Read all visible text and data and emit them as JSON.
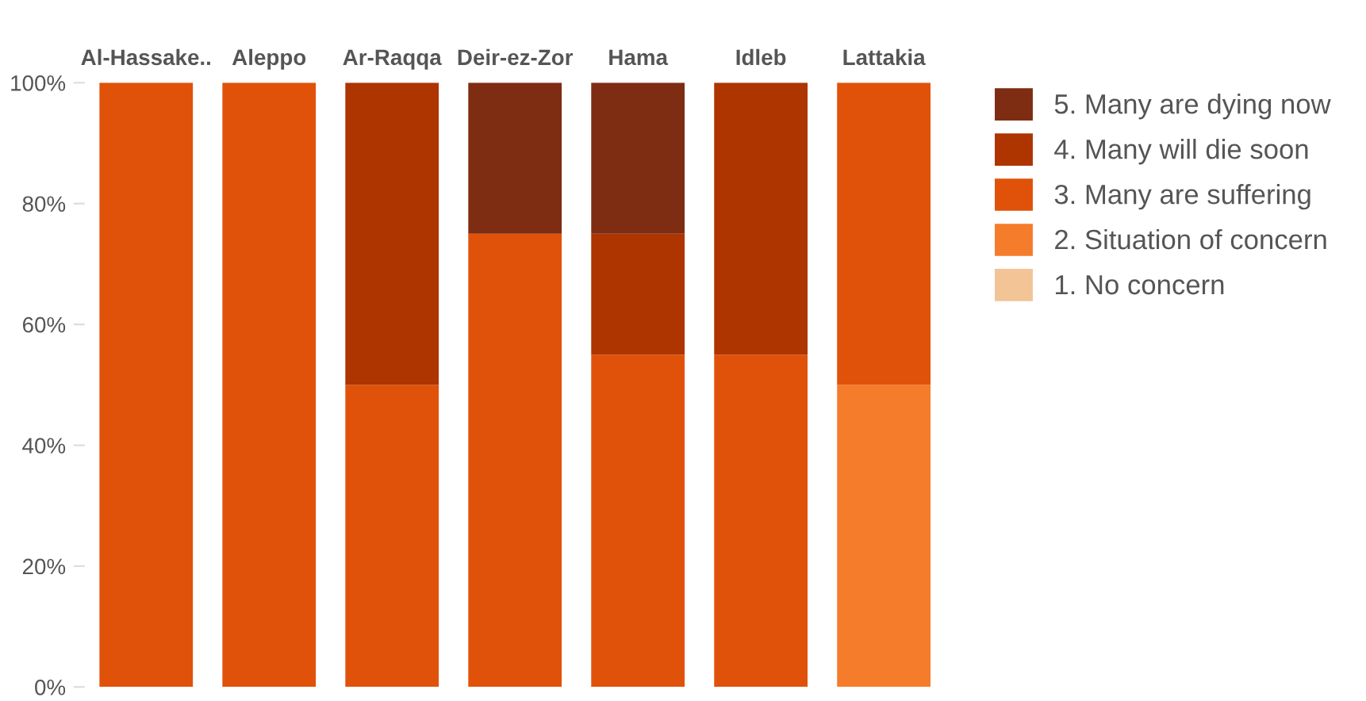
{
  "chart_data": {
    "type": "bar",
    "stacked": true,
    "categories": [
      "Al-Hassake..",
      "Aleppo",
      "Ar-Raqqa",
      "Deir-ez-Zor",
      "Hama",
      "Idleb",
      "Lattakia"
    ],
    "series": [
      {
        "name": "1. No concern",
        "color": "#f2c496",
        "values": [
          0,
          0,
          0,
          0,
          0,
          0,
          0
        ]
      },
      {
        "name": "2. Situation of concern",
        "color": "#f57c2a",
        "values": [
          0,
          0,
          0,
          0,
          0,
          0,
          50
        ]
      },
      {
        "name": "3. Many are suffering",
        "color": "#e0520a",
        "values": [
          100,
          100,
          50,
          75,
          55,
          55,
          50
        ]
      },
      {
        "name": "4. Many will die soon",
        "color": "#ae3400",
        "values": [
          0,
          0,
          50,
          0,
          20,
          45,
          0
        ]
      },
      {
        "name": "5. Many are dying now",
        "color": "#7e2d13",
        "values": [
          0,
          0,
          0,
          25,
          25,
          0,
          0
        ]
      }
    ],
    "ylim": [
      0,
      100
    ],
    "yticks": [
      {
        "value": 0,
        "label": "0%"
      },
      {
        "value": 20,
        "label": "20%"
      },
      {
        "value": 40,
        "label": "40%"
      },
      {
        "value": 60,
        "label": "60%"
      },
      {
        "value": 80,
        "label": "80%"
      },
      {
        "value": 100,
        "label": "100%"
      }
    ],
    "legend": "right",
    "grid": false
  }
}
